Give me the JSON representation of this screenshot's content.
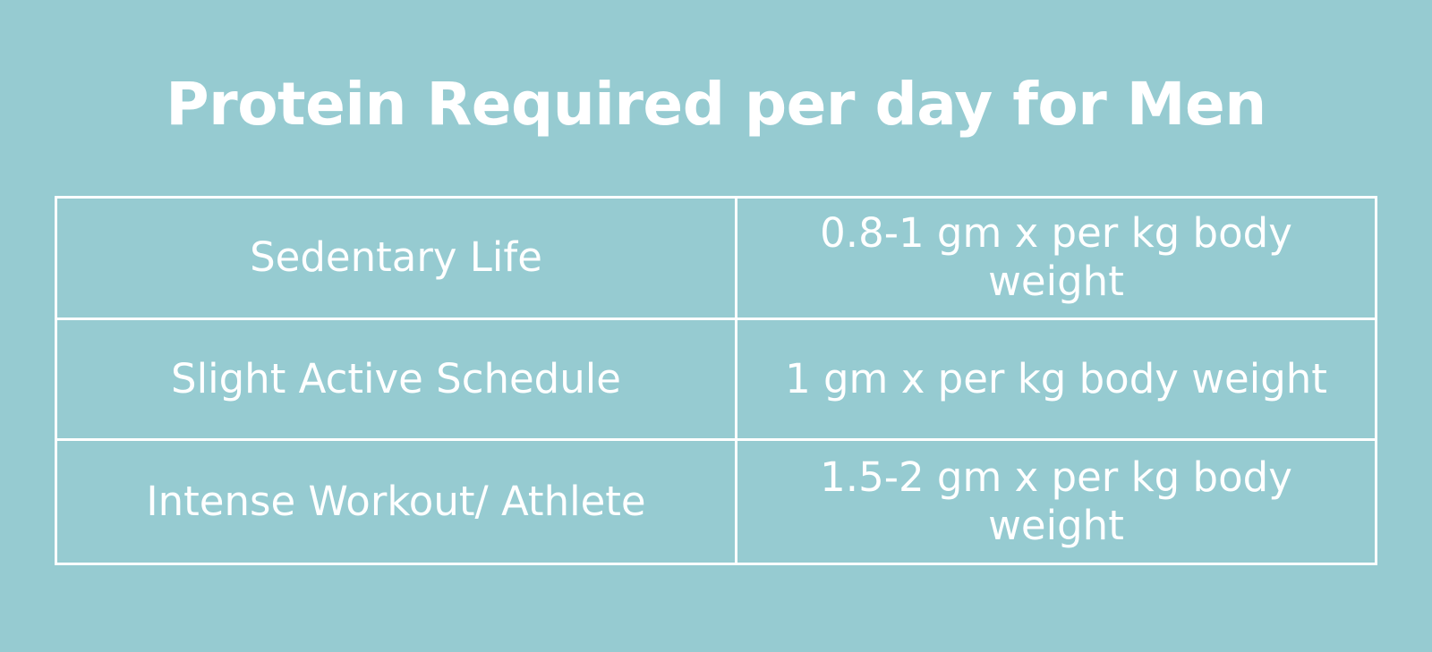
{
  "title": "Protein Required per day for Men",
  "colors": {
    "background": "#96cbd1",
    "text": "#ffffff",
    "border": "#ffffff"
  },
  "rows": [
    {
      "activity": "Sedentary Life",
      "protein": "0.8-1 gm x per kg body weight"
    },
    {
      "activity": "Slight Active Schedule",
      "protein": "1 gm x per kg body weight"
    },
    {
      "activity": "Intense Workout/ Athlete",
      "protein": "1.5-2 gm x per kg body weight"
    }
  ]
}
